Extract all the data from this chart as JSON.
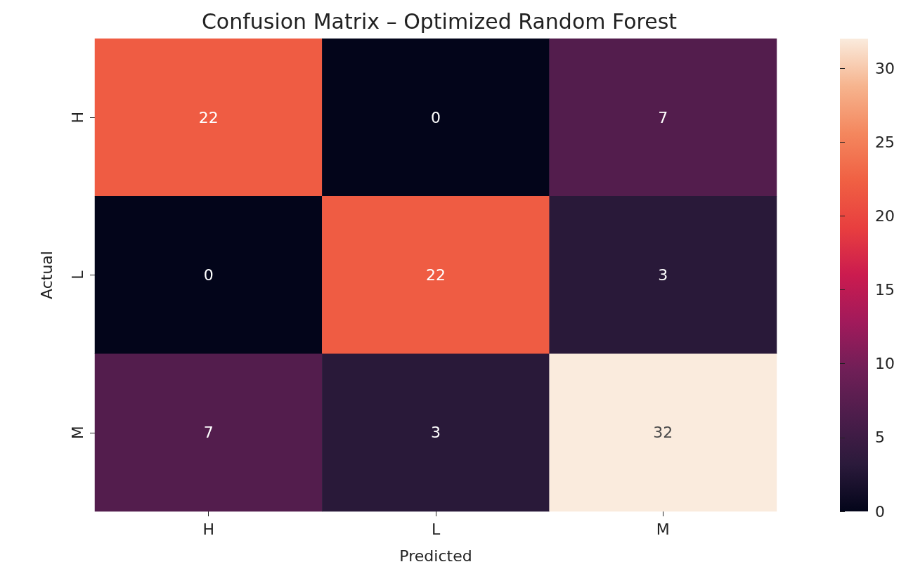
{
  "chart_data": {
    "type": "heatmap",
    "title": "Confusion Matrix – Optimized Random Forest",
    "xlabel": "Predicted",
    "ylabel": "Actual",
    "categories": [
      "H",
      "L",
      "M"
    ],
    "y_categories": [
      "H",
      "L",
      "M"
    ],
    "cells": [
      [
        22,
        0,
        7
      ],
      [
        0,
        22,
        3
      ],
      [
        7,
        3,
        32
      ]
    ],
    "data_labels": true,
    "clim": [
      0,
      32
    ],
    "cticks": [
      0,
      5,
      10,
      15,
      20,
      25,
      30
    ]
  }
}
